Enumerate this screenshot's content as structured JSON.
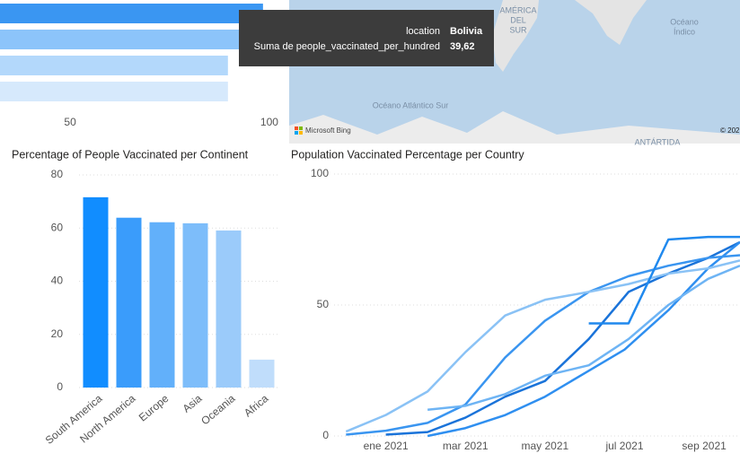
{
  "chart_data": [
    {
      "type": "hbar",
      "categories": [
        null,
        null,
        null,
        null
      ],
      "values": [
        98.4,
        98.9,
        89.6,
        89.6
      ],
      "colors": [
        "#3a96f2",
        "#8cc4fa",
        "#b3d8fb",
        "#d6e9fc"
      ],
      "xlim": [
        32.4,
        102.4
      ],
      "xticks": [
        50,
        100
      ]
    },
    {
      "type": "bar",
      "title": "Percentage of People Vaccinated per Continent",
      "categories": [
        "South America",
        "North America",
        "Europe",
        "Asia",
        "Oceania",
        "Africa"
      ],
      "values": [
        71.6,
        63.9,
        62.2,
        61.8,
        59.1,
        10.5
      ],
      "colors": [
        "#118dff",
        "#3a9cfb",
        "#62b0fa",
        "#7dbdfa",
        "#9bcbfa",
        "#c0ddfb"
      ],
      "ylim": [
        0,
        80
      ],
      "yticks": [
        0,
        20,
        40,
        60,
        80
      ],
      "grid": true
    },
    {
      "type": "line",
      "title": "Population Vaccinated Percentage per Country",
      "xlim": [
        -1.3,
        8.9
      ],
      "ylim": [
        0,
        100
      ],
      "yticks": [
        0,
        50,
        100
      ],
      "grid": true,
      "xticks": [
        {
          "value": 0,
          "label": "ene 2021"
        },
        {
          "value": 2,
          "label": "mar 2021"
        },
        {
          "value": 4,
          "label": "may 2021"
        },
        {
          "value": 6,
          "label": "jul 2021"
        },
        {
          "value": 8,
          "label": "sep 2021"
        }
      ],
      "series": [
        {
          "color": "#1a73d9",
          "x": [
            0,
            1.05,
            2,
            3,
            4,
            5.1,
            6.1,
            7.1,
            8.1,
            8.9
          ],
          "values": [
            0.5,
            1.5,
            7,
            15,
            21,
            37,
            55,
            62,
            68,
            74
          ]
        },
        {
          "color": "#2f8ff0",
          "x": [
            1.05,
            2,
            3,
            4,
            5,
            6,
            7.1,
            8.1,
            8.9
          ],
          "values": [
            0,
            3,
            8,
            15,
            24,
            33,
            48,
            64,
            74
          ]
        },
        {
          "color": "#3a95f0",
          "x": [
            -1,
            0,
            1.05,
            2,
            3,
            4,
            5.1,
            6.1,
            7.1,
            8.1,
            8.9
          ],
          "values": [
            0.5,
            2,
            5,
            12,
            30,
            44,
            55,
            61,
            65,
            68,
            69
          ]
        },
        {
          "color": "#8ac2f5",
          "x": [
            -1,
            0,
            1.05,
            2,
            3,
            4,
            5.1,
            6.1,
            7.1,
            8.1,
            8.9
          ],
          "values": [
            1.7,
            8,
            17,
            32,
            46,
            52,
            55,
            58,
            62,
            64,
            67
          ]
        },
        {
          "color": "#2089ee",
          "x": [
            5.1,
            6.1,
            7.1,
            8.1,
            8.9
          ],
          "values": [
            43,
            43,
            75,
            76,
            76
          ]
        },
        {
          "color": "#6eb4f4",
          "x": [
            1.05,
            2,
            3,
            4,
            5.1,
            6.1,
            7.1,
            8.1,
            8.9
          ],
          "values": [
            10,
            11.5,
            16,
            23,
            27,
            37,
            50,
            60,
            65
          ]
        }
      ]
    }
  ],
  "map": {
    "south_america": [
      "AMÉRICA",
      "DEL",
      "SUR"
    ],
    "indian_ocean": [
      "Océano",
      "Índico"
    ],
    "atlantic": "Océano Atlántico Sur",
    "antarctica": "ANTÁRTIDA",
    "provider": "Microsoft Bing",
    "copyright": "© 202"
  },
  "tooltip": {
    "rows": [
      {
        "label": "location",
        "value": "Bolivia"
      },
      {
        "label": "Suma de people_vaccinated_per_hundred",
        "value": "39,62"
      }
    ]
  }
}
